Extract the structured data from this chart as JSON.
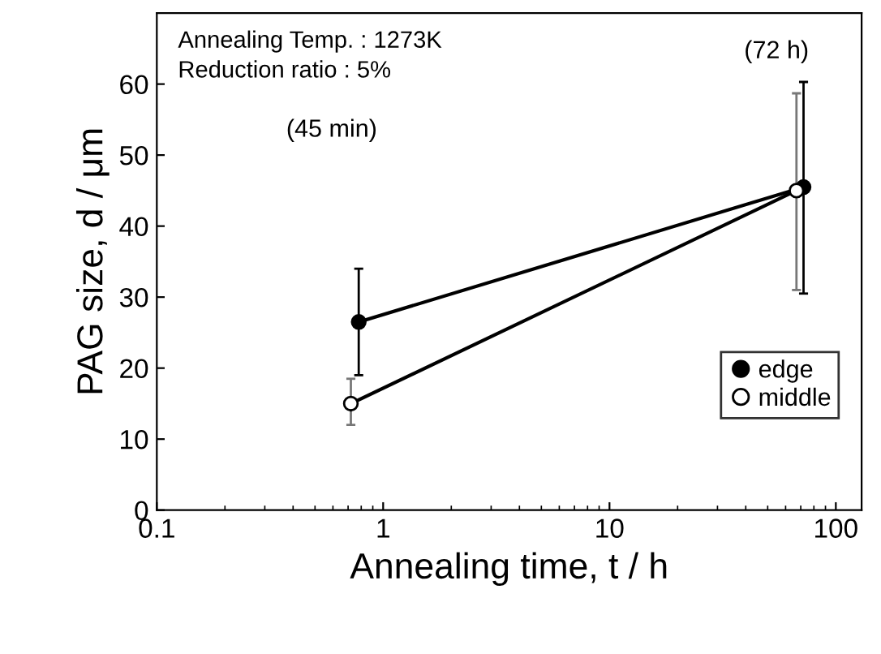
{
  "chart_data": {
    "type": "line",
    "xlabel": "Annealing time, t / h",
    "ylabel": "PAG size, d / μm",
    "log": "x",
    "xlim": [
      0.1,
      130
    ],
    "xticks": [
      0.1,
      1,
      10,
      100
    ],
    "ylim": [
      0,
      70
    ],
    "yticks": [
      0,
      10,
      20,
      30,
      40,
      50,
      60
    ],
    "grid": false,
    "legend": "bottom right",
    "marker": "circle",
    "line_style": "solid",
    "series": [
      {
        "name": "edge",
        "color": "#000000",
        "x": [
          0.78,
          72
        ],
        "values": [
          26.5,
          45.5
        ],
        "errors": [
          [
            19,
            34
          ],
          [
            30.5,
            60.3
          ]
        ]
      },
      {
        "name": "middle",
        "color": "#ffffff",
        "x": [
          0.72,
          67
        ],
        "values": [
          15,
          45
        ],
        "errors": [
          [
            12,
            18.5
          ],
          [
            31,
            58.7
          ]
        ]
      }
    ],
    "annotations": [
      "Annealing Temp. : 1273K",
      "Reduction ratio : 5%",
      "(45 min)",
      "(72 h)"
    ]
  }
}
